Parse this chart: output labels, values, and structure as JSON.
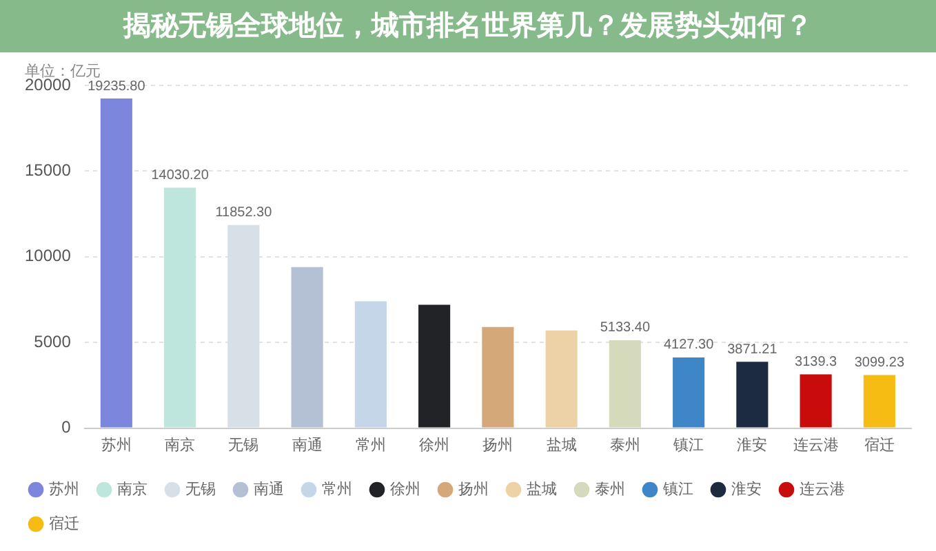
{
  "chart_data": {
    "type": "bar",
    "title": "揭秘无锡全球地位，城市排名世界第几？发展势头如何？",
    "ylabel": "单位：亿元",
    "categories": [
      "苏州",
      "南京",
      "无锡",
      "南通",
      "常州",
      "徐州",
      "扬州",
      "盐城",
      "泰州",
      "镇江",
      "淮安",
      "连云港",
      "宿迁"
    ],
    "series": [
      {
        "name": "苏州",
        "color": "#7b86dc",
        "values": [
          19235.8,
          null,
          null,
          null,
          null,
          null,
          null,
          null,
          null,
          null,
          null,
          null,
          null
        ],
        "value_labels": [
          "19235.80",
          null,
          null,
          null,
          null,
          null,
          null,
          null,
          null,
          null,
          null,
          null,
          null
        ]
      },
      {
        "name": "南京",
        "color": "#bfe6dc",
        "values": [
          null,
          14030.2,
          null,
          null,
          null,
          null,
          null,
          null,
          null,
          null,
          null,
          null,
          null
        ],
        "value_labels": [
          null,
          "14030.20",
          null,
          null,
          null,
          null,
          null,
          null,
          null,
          null,
          null,
          null,
          null
        ]
      },
      {
        "name": "无锡",
        "color": "#d7e0e6",
        "values": [
          null,
          null,
          11852.3,
          null,
          null,
          null,
          null,
          null,
          null,
          null,
          null,
          null,
          null
        ],
        "value_labels": [
          null,
          null,
          "11852.30",
          null,
          null,
          null,
          null,
          null,
          null,
          null,
          null,
          null,
          null
        ]
      },
      {
        "name": "南通",
        "color": "#b4c0d4",
        "values": [
          null,
          null,
          null,
          9400,
          null,
          null,
          null,
          null,
          null,
          null,
          null,
          null,
          null
        ]
      },
      {
        "name": "常州",
        "color": "#c4d6e8",
        "values": [
          null,
          null,
          null,
          null,
          7400,
          null,
          null,
          null,
          null,
          null,
          null,
          null,
          null
        ]
      },
      {
        "name": "徐州",
        "color": "#222326",
        "values": [
          null,
          null,
          null,
          null,
          null,
          7200,
          null,
          null,
          null,
          null,
          null,
          null,
          null
        ]
      },
      {
        "name": "扬州",
        "color": "#d4a878",
        "values": [
          null,
          null,
          null,
          null,
          null,
          null,
          5900,
          null,
          null,
          null,
          null,
          null,
          null
        ]
      },
      {
        "name": "盐城",
        "color": "#ecd2a6",
        "values": [
          null,
          null,
          null,
          null,
          null,
          null,
          null,
          5700,
          null,
          null,
          null,
          null,
          null
        ]
      },
      {
        "name": "泰州",
        "color": "#d6dabc",
        "values": [
          null,
          null,
          null,
          null,
          null,
          null,
          null,
          null,
          5133.4,
          null,
          null,
          null,
          null
        ],
        "value_labels": [
          null,
          null,
          null,
          null,
          null,
          null,
          null,
          null,
          "5133.40",
          null,
          null,
          null,
          null
        ]
      },
      {
        "name": "镇江",
        "color": "#3f86c8",
        "values": [
          null,
          null,
          null,
          null,
          null,
          null,
          null,
          null,
          null,
          4127.3,
          null,
          null,
          null
        ],
        "value_labels": [
          null,
          null,
          null,
          null,
          null,
          null,
          null,
          null,
          null,
          "4127.30",
          null,
          null,
          null
        ]
      },
      {
        "name": "淮安",
        "color": "#1c2b40",
        "values": [
          null,
          null,
          null,
          null,
          null,
          null,
          null,
          null,
          null,
          null,
          3871.21,
          null,
          null
        ],
        "value_labels": [
          null,
          null,
          null,
          null,
          null,
          null,
          null,
          null,
          null,
          null,
          "3871.21",
          null,
          null
        ]
      },
      {
        "name": "连云港",
        "color": "#c80c0c",
        "values": [
          null,
          null,
          null,
          null,
          null,
          null,
          null,
          null,
          null,
          null,
          null,
          3139.3,
          null
        ],
        "value_labels": [
          null,
          null,
          null,
          null,
          null,
          null,
          null,
          null,
          null,
          null,
          null,
          "3139.3",
          null
        ]
      },
      {
        "name": "宿迁",
        "color": "#f6bc14",
        "values": [
          null,
          null,
          null,
          null,
          null,
          null,
          null,
          null,
          null,
          null,
          null,
          null,
          3099.23
        ],
        "value_labels": [
          null,
          null,
          null,
          null,
          null,
          null,
          null,
          null,
          null,
          null,
          null,
          null,
          "3099.23"
        ]
      }
    ],
    "ylim": [
      0,
      20000
    ],
    "yticks": [
      0,
      5000,
      10000,
      15000,
      20000
    ],
    "grid": "y",
    "legend": "bottom left"
  }
}
